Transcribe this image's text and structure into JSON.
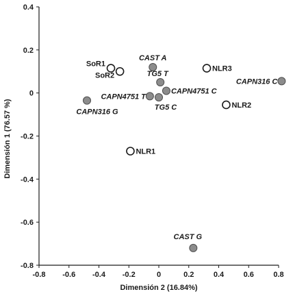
{
  "chart_data": {
    "type": "scatter",
    "title": "",
    "xlabel": "Dimensión 2 (16.84%)",
    "ylabel": "Dimensión 1 (76.57 %)",
    "xlim": [
      -0.8,
      0.8
    ],
    "ylim": [
      -0.8,
      0.4
    ],
    "x_ticks": [
      "-0.8",
      "-0.6",
      "-0.4",
      "-0.2",
      "0",
      "0.2",
      "0.4",
      "0.6",
      "0.8"
    ],
    "y_ticks": [
      "0.4",
      "0.2",
      "0",
      "-0.2",
      "-0.4",
      "-0.6",
      "-0.8"
    ],
    "grid": false,
    "points": [
      {
        "label": "SoR1",
        "x": -0.32,
        "y": 0.115,
        "kind": "open",
        "italic": false
      },
      {
        "label": "SoR2",
        "x": -0.26,
        "y": 0.1,
        "kind": "open",
        "italic": false
      },
      {
        "label": "NLR3",
        "x": 0.32,
        "y": 0.115,
        "kind": "open",
        "italic": false
      },
      {
        "label": "NLR2",
        "x": 0.45,
        "y": -0.055,
        "kind": "open",
        "italic": false
      },
      {
        "label": "NLR1",
        "x": -0.19,
        "y": -0.27,
        "kind": "open",
        "italic": false
      },
      {
        "label": "CAST A",
        "x": -0.04,
        "y": 0.12,
        "kind": "filled",
        "italic": true
      },
      {
        "label": "TG5 T",
        "x": 0.01,
        "y": 0.05,
        "kind": "filled",
        "italic": true
      },
      {
        "label": "CAPN4751 C",
        "x": 0.05,
        "y": 0.01,
        "kind": "filled",
        "italic": true
      },
      {
        "label": "CAPN4751 T",
        "x": -0.06,
        "y": -0.015,
        "kind": "filled",
        "italic": true
      },
      {
        "label": "TG5 C",
        "x": 0.0,
        "y": -0.02,
        "kind": "filled",
        "italic": true
      },
      {
        "label": "CAPN316 C",
        "x": 0.82,
        "y": 0.055,
        "kind": "filled",
        "italic": true
      },
      {
        "label": "CAPN316 G",
        "x": -0.48,
        "y": -0.035,
        "kind": "filled",
        "italic": true
      },
      {
        "label": "CAST G",
        "x": 0.23,
        "y": -0.72,
        "kind": "filled",
        "italic": true
      }
    ],
    "colors": {
      "filled_fill": "#8c8c8c",
      "filled_stroke": "#4d4d4d",
      "open_fill": "#ffffff",
      "open_stroke": "#1a1a1a",
      "axis": "#1a1a1a"
    }
  }
}
